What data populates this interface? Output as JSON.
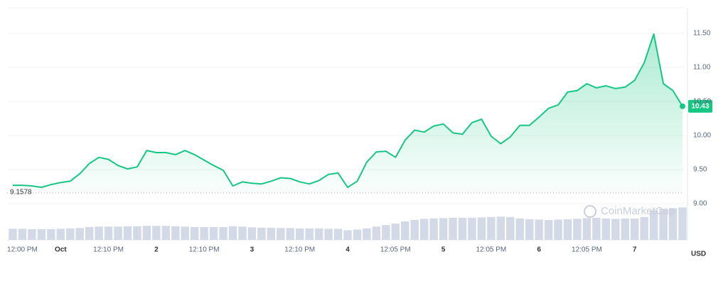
{
  "chart_data": {
    "type": "line",
    "categories": [
      null,
      "12:00 PM",
      null,
      null,
      null,
      "Oct",
      null,
      null,
      null,
      null,
      "12:10 PM",
      null,
      null,
      null,
      null,
      "2",
      null,
      null,
      null,
      null,
      "12:10 PM",
      null,
      null,
      null,
      null,
      "3",
      null,
      null,
      null,
      null,
      "12:10 PM",
      null,
      null,
      null,
      null,
      "4",
      null,
      null,
      null,
      null,
      "12:05 PM",
      null,
      null,
      null,
      null,
      "5",
      null,
      null,
      null,
      null,
      "12:05 PM",
      null,
      null,
      null,
      null,
      "6",
      null,
      null,
      null,
      null,
      "12:05 PM",
      null,
      null,
      null,
      null,
      "7",
      null,
      null,
      null,
      null,
      null
    ],
    "series": [
      {
        "color": "#16c784",
        "values": [
          9.27,
          9.27,
          9.26,
          9.24,
          9.28,
          9.31,
          9.33,
          9.44,
          9.59,
          9.68,
          9.65,
          9.56,
          9.51,
          9.54,
          9.78,
          9.75,
          9.75,
          9.72,
          9.78,
          9.72,
          9.64,
          9.56,
          9.49,
          9.26,
          9.32,
          9.3,
          9.29,
          9.33,
          9.38,
          9.37,
          9.32,
          9.29,
          9.34,
          9.43,
          9.45,
          9.24,
          9.33,
          9.61,
          9.76,
          9.77,
          9.68,
          9.93,
          10.08,
          10.05,
          10.14,
          10.17,
          10.04,
          10.02,
          10.19,
          10.24,
          9.99,
          9.88,
          9.98,
          10.15,
          10.15,
          10.27,
          10.4,
          10.45,
          10.64,
          10.66,
          10.76,
          10.7,
          10.73,
          10.69,
          10.71,
          10.81,
          11.07,
          11.49,
          10.76,
          10.66,
          10.43
        ]
      }
    ],
    "volume": {
      "color": "#d3d9e6",
      "ylim": [
        0,
        100
      ],
      "values": [
        30,
        30,
        29,
        29,
        29,
        30,
        31,
        32,
        35,
        36,
        36,
        36,
        37,
        37,
        38,
        38,
        38,
        37,
        36,
        35,
        35,
        35,
        35,
        37,
        36,
        34,
        33,
        33,
        32,
        32,
        31,
        31,
        31,
        30,
        30,
        26,
        28,
        31,
        36,
        40,
        44,
        50,
        54,
        57,
        58,
        59,
        60,
        60,
        60,
        61,
        62,
        63,
        62,
        58,
        56,
        55,
        54,
        55,
        56,
        57,
        59,
        60,
        58,
        57,
        58,
        58,
        62,
        80,
        84,
        86,
        88
      ]
    },
    "ylim": [
      8.5,
      11.875
    ],
    "yticks": [
      {
        "value": 9,
        "label": "9.00"
      },
      {
        "value": 9.5,
        "label": "9.50"
      },
      {
        "value": 10,
        "label": "10.00"
      },
      {
        "value": 10.5,
        "label": "10.50"
      },
      {
        "value": 11,
        "label": "11.00"
      },
      {
        "value": 11.5,
        "label": "11.50"
      }
    ],
    "grid": true,
    "baseline": 9.1578,
    "currency": "USD",
    "watermark": "CoinMarketCap"
  }
}
